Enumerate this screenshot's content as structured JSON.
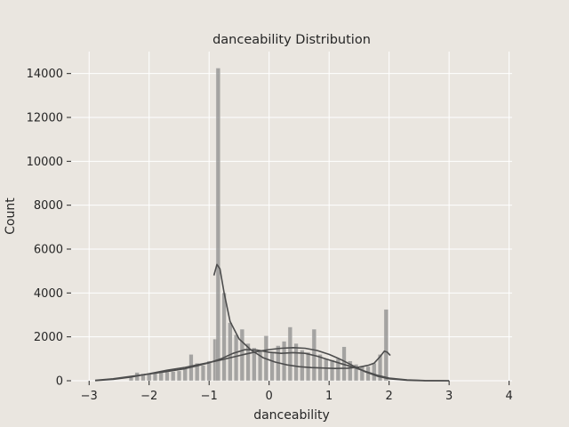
{
  "chart_data": {
    "type": "bar",
    "title": "danceability Distribution",
    "xlabel": "danceability",
    "ylabel": "Count",
    "xlim": [
      -3.3,
      4.05
    ],
    "ylim": [
      0,
      15000
    ],
    "xticks": [
      -3,
      -2,
      -1,
      0,
      1,
      2,
      3,
      4
    ],
    "xtick_labels": [
      "−3",
      "−2",
      "−1",
      "0",
      "1",
      "2",
      "3",
      "4"
    ],
    "yticks": [
      0,
      2000,
      4000,
      6000,
      8000,
      10000,
      12000,
      14000
    ],
    "ytick_labels": [
      "0",
      "2000",
      "4000",
      "6000",
      "8000",
      "10000",
      "12000",
      "14000"
    ],
    "grid": true,
    "background": "#eae6e0",
    "bar_color": "#8c8c8c",
    "kde_color": "#4d4d4d",
    "series": [
      {
        "bins": [
          {
            "x": -2.3,
            "w": 0.07,
            "count": 150
          },
          {
            "x": -2.2,
            "w": 0.07,
            "count": 380
          },
          {
            "x": -2.1,
            "w": 0.07,
            "count": 320
          },
          {
            "x": -2.0,
            "w": 0.07,
            "count": 300
          },
          {
            "x": -1.9,
            "w": 0.07,
            "count": 350
          },
          {
            "x": -1.8,
            "w": 0.07,
            "count": 380
          },
          {
            "x": -1.7,
            "w": 0.07,
            "count": 400
          },
          {
            "x": -1.6,
            "w": 0.07,
            "count": 420
          },
          {
            "x": -1.5,
            "w": 0.07,
            "count": 450
          },
          {
            "x": -1.4,
            "w": 0.07,
            "count": 550
          },
          {
            "x": -1.3,
            "w": 0.07,
            "count": 1200
          },
          {
            "x": -1.2,
            "w": 0.07,
            "count": 800
          },
          {
            "x": -1.1,
            "w": 0.07,
            "count": 700
          },
          {
            "x": -1.0,
            "w": 0.07,
            "count": 900
          },
          {
            "x": -0.9,
            "w": 0.07,
            "count": 1900
          },
          {
            "x": -0.85,
            "w": 0.07,
            "count": 14250
          },
          {
            "x": -0.75,
            "w": 0.07,
            "count": 4000
          },
          {
            "x": -0.65,
            "w": 0.07,
            "count": 2650
          },
          {
            "x": -0.55,
            "w": 0.07,
            "count": 2100
          },
          {
            "x": -0.45,
            "w": 0.07,
            "count": 2350
          },
          {
            "x": -0.35,
            "w": 0.07,
            "count": 1700
          },
          {
            "x": -0.25,
            "w": 0.07,
            "count": 1500
          },
          {
            "x": -0.15,
            "w": 0.07,
            "count": 1400
          },
          {
            "x": -0.05,
            "w": 0.07,
            "count": 2050
          },
          {
            "x": 0.05,
            "w": 0.07,
            "count": 1300
          },
          {
            "x": 0.15,
            "w": 0.07,
            "count": 1600
          },
          {
            "x": 0.25,
            "w": 0.07,
            "count": 1800
          },
          {
            "x": 0.35,
            "w": 0.07,
            "count": 2450
          },
          {
            "x": 0.45,
            "w": 0.07,
            "count": 1700
          },
          {
            "x": 0.55,
            "w": 0.07,
            "count": 1400
          },
          {
            "x": 0.65,
            "w": 0.07,
            "count": 1300
          },
          {
            "x": 0.75,
            "w": 0.07,
            "count": 2350
          },
          {
            "x": 0.85,
            "w": 0.07,
            "count": 1200
          },
          {
            "x": 0.95,
            "w": 0.07,
            "count": 1000
          },
          {
            "x": 1.05,
            "w": 0.07,
            "count": 950
          },
          {
            "x": 1.15,
            "w": 0.07,
            "count": 1000
          },
          {
            "x": 1.25,
            "w": 0.07,
            "count": 1550
          },
          {
            "x": 1.35,
            "w": 0.07,
            "count": 900
          },
          {
            "x": 1.45,
            "w": 0.07,
            "count": 750
          },
          {
            "x": 1.55,
            "w": 0.07,
            "count": 650
          },
          {
            "x": 1.65,
            "w": 0.07,
            "count": 650
          },
          {
            "x": 1.75,
            "w": 0.07,
            "count": 800
          },
          {
            "x": 1.85,
            "w": 0.07,
            "count": 1200
          },
          {
            "x": 1.95,
            "w": 0.07,
            "count": 3250
          }
        ],
        "kde": [
          {
            "x": -2.9,
            "y": 10
          },
          {
            "x": -2.6,
            "y": 60
          },
          {
            "x": -2.3,
            "y": 170
          },
          {
            "x": -2.0,
            "y": 320
          },
          {
            "x": -1.7,
            "y": 480
          },
          {
            "x": -1.4,
            "y": 610
          },
          {
            "x": -1.2,
            "y": 720
          },
          {
            "x": -1.0,
            "y": 830
          },
          {
            "x": -0.8,
            "y": 950
          },
          {
            "x": -0.6,
            "y": 1080
          },
          {
            "x": -0.4,
            "y": 1210
          },
          {
            "x": -0.2,
            "y": 1330
          },
          {
            "x": 0.0,
            "y": 1420
          },
          {
            "x": 0.2,
            "y": 1480
          },
          {
            "x": 0.4,
            "y": 1510
          },
          {
            "x": 0.6,
            "y": 1480
          },
          {
            "x": 0.8,
            "y": 1380
          },
          {
            "x": 1.0,
            "y": 1200
          },
          {
            "x": 1.2,
            "y": 960
          },
          {
            "x": 1.4,
            "y": 680
          },
          {
            "x": 1.6,
            "y": 410
          },
          {
            "x": 1.8,
            "y": 210
          },
          {
            "x": 2.0,
            "y": 90
          },
          {
            "x": 2.3,
            "y": 25
          },
          {
            "x": 2.6,
            "y": 5
          },
          {
            "x": 3.0,
            "y": 0
          }
        ]
      },
      {
        "kde": [
          {
            "x": -2.9,
            "y": 20
          },
          {
            "x": -2.6,
            "y": 90
          },
          {
            "x": -2.3,
            "y": 200
          },
          {
            "x": -2.0,
            "y": 310
          },
          {
            "x": -1.7,
            "y": 420
          },
          {
            "x": -1.4,
            "y": 550
          },
          {
            "x": -1.2,
            "y": 680
          },
          {
            "x": -1.0,
            "y": 820
          },
          {
            "x": -0.8,
            "y": 1000
          },
          {
            "x": -0.6,
            "y": 1250
          },
          {
            "x": -0.4,
            "y": 1420
          },
          {
            "x": -0.2,
            "y": 1400
          },
          {
            "x": 0.0,
            "y": 1300
          },
          {
            "x": 0.2,
            "y": 1250
          },
          {
            "x": 0.4,
            "y": 1280
          },
          {
            "x": 0.6,
            "y": 1250
          },
          {
            "x": 0.8,
            "y": 1120
          },
          {
            "x": 1.0,
            "y": 950
          },
          {
            "x": 1.2,
            "y": 780
          },
          {
            "x": 1.4,
            "y": 620
          },
          {
            "x": 1.6,
            "y": 430
          },
          {
            "x": 1.8,
            "y": 250
          },
          {
            "x": 2.0,
            "y": 120
          },
          {
            "x": 2.3,
            "y": 40
          },
          {
            "x": 2.6,
            "y": 10
          },
          {
            "x": 3.0,
            "y": 0
          }
        ]
      },
      {
        "kde": [
          {
            "x": -0.92,
            "y": 4800
          },
          {
            "x": -0.87,
            "y": 5300
          },
          {
            "x": -0.82,
            "y": 5100
          },
          {
            "x": -0.75,
            "y": 4000
          },
          {
            "x": -0.65,
            "y": 2700
          },
          {
            "x": -0.5,
            "y": 1900
          },
          {
            "x": -0.3,
            "y": 1400
          },
          {
            "x": -0.1,
            "y": 1050
          },
          {
            "x": 0.1,
            "y": 850
          },
          {
            "x": 0.3,
            "y": 720
          },
          {
            "x": 0.5,
            "y": 640
          },
          {
            "x": 0.7,
            "y": 600
          },
          {
            "x": 0.9,
            "y": 580
          },
          {
            "x": 1.1,
            "y": 560
          },
          {
            "x": 1.3,
            "y": 570
          },
          {
            "x": 1.5,
            "y": 620
          },
          {
            "x": 1.65,
            "y": 700
          },
          {
            "x": 1.75,
            "y": 800
          },
          {
            "x": 1.85,
            "y": 1100
          },
          {
            "x": 1.92,
            "y": 1350
          },
          {
            "x": 1.97,
            "y": 1300
          },
          {
            "x": 2.02,
            "y": 1150
          }
        ]
      }
    ]
  }
}
